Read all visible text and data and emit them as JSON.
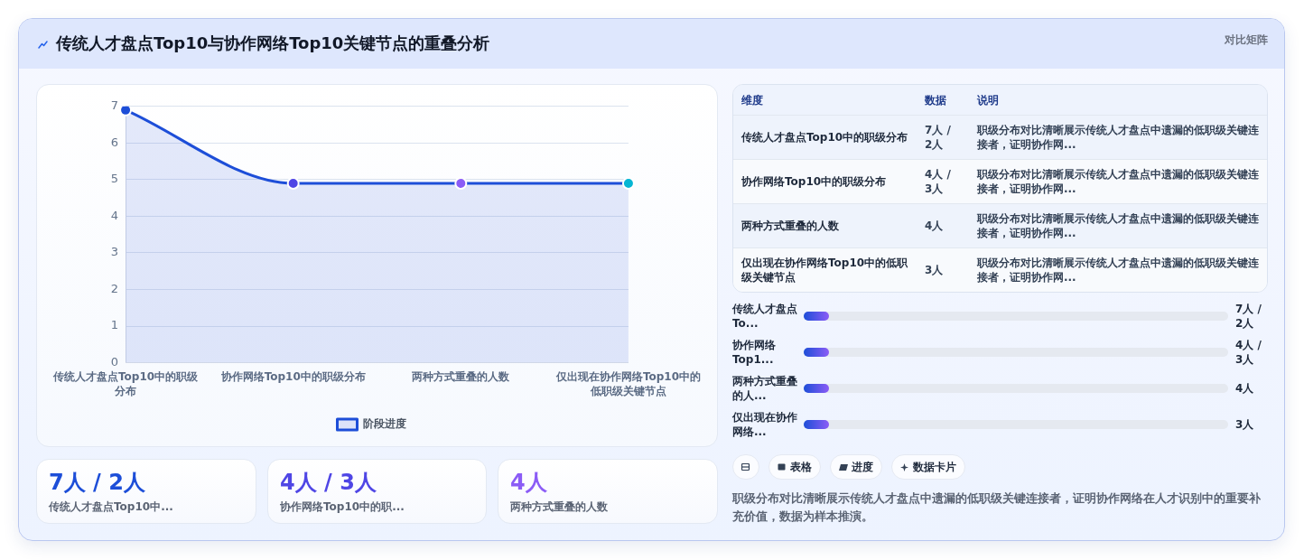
{
  "chart_data": [
    {
      "type": "area",
      "title": "传统人才盘点Top10与协作网络Top10关键节点的重叠分析",
      "categories": [
        "传统人才盘点Top10中的职级分布",
        "协作网络Top10中的职级分布",
        "两种方式重叠的人数",
        "仅出现在协作网络Top10中的低职级关键节点"
      ],
      "series": [
        {
          "name": "阶段进度",
          "color": "#1d4ed8",
          "colors": [
            "#1d4ed8",
            "#4f46e5",
            "#8b5cf6",
            "#06b6d4"
          ],
          "values": [
            6.9,
            4.9,
            4.9,
            4.9
          ]
        }
      ],
      "ylim": [
        0,
        7
      ],
      "yticks": [
        0,
        1,
        2,
        3,
        4,
        5,
        6,
        7
      ],
      "grid": "y",
      "legend": "bottom",
      "marker": "circle",
      "line_style": "solid"
    },
    {
      "type": "other",
      "title": "对比矩阵",
      "categories": [
        "维度",
        "数据",
        "说明"
      ],
      "cell_labels": [
        [
          "传统人才盘点Top10中的职级分布",
          "7人 / 2人",
          "职级分布对比清晰展示传统人才盘点中遗漏的低职级关键连接者，证明协作网..."
        ],
        [
          "协作网络Top10中的职级分布",
          "4人 / 3人",
          "职级分布对比清晰展示传统人才盘点中遗漏的低职级关键连接者，证明协作网..."
        ],
        [
          "两种方式重叠的人数",
          "4人",
          "职级分布对比清晰展示传统人才盘点中遗漏的低职级关键连接者，证明协作网..."
        ],
        [
          "仅出现在协作网络Top10中的低职级关键节点",
          "3人",
          "职级分布对比清晰展示传统人才盘点中遗漏的低职级关键连接者，证明协作网..."
        ]
      ]
    },
    {
      "type": "other",
      "y_categories": [
        "传统人才盘点To...",
        "协作网络Top1...",
        "两种方式重叠的人...",
        "仅出现在协作网络..."
      ],
      "annotations": [
        "7人 / 2人",
        "4人 / 3人",
        "4人",
        "3人"
      ]
    },
    {
      "type": "other",
      "annotations": [
        "7人 / 2人",
        "传统人才盘点Top10中...",
        "4人 / 3人",
        "协作网络Top10中的职...",
        "4人",
        "两种方式重叠的人数"
      ],
      "colors": [
        "#1d4ed8",
        "#4f46e5",
        "#8b5cf6"
      ]
    },
    {
      "type": "other",
      "categories": [
        null,
        "表格",
        "进度",
        "数据卡片"
      ],
      "annotations": [
        "职级分布对比清晰展示传统人才盘点中遗漏的低职级关键连接者，证明协作网络在人才识别中的重要补充价值，数据为样本推演。"
      ]
    }
  ]
}
